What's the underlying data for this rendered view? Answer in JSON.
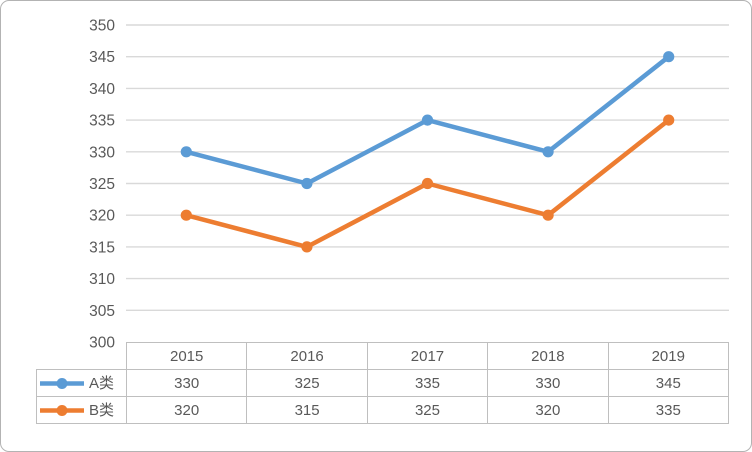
{
  "frame": {
    "background": "#FFFFFF",
    "border_color": "#B3B3B3"
  },
  "chart_data": {
    "type": "line",
    "title": "",
    "xlabel": "",
    "ylabel": "",
    "categories": [
      "2015",
      "2016",
      "2017",
      "2018",
      "2019"
    ],
    "series": [
      {
        "name": "A类",
        "values": [
          330,
          325,
          335,
          330,
          345
        ],
        "color": "#5B9BD5"
      },
      {
        "name": "B类",
        "values": [
          320,
          315,
          325,
          320,
          335
        ],
        "color": "#ED7D31"
      }
    ],
    "ylim": [
      300,
      350
    ],
    "ytick_step": 5,
    "y_tick_labels": [
      "300",
      "305",
      "310",
      "315",
      "320",
      "325",
      "330",
      "335",
      "340",
      "345",
      "350"
    ],
    "grid": true,
    "legend_position": "data-table-left",
    "marker": "circle",
    "colors": {
      "gridline": "#D9D9D9",
      "table_border": "#BFBFBF",
      "label": "#595959"
    }
  }
}
